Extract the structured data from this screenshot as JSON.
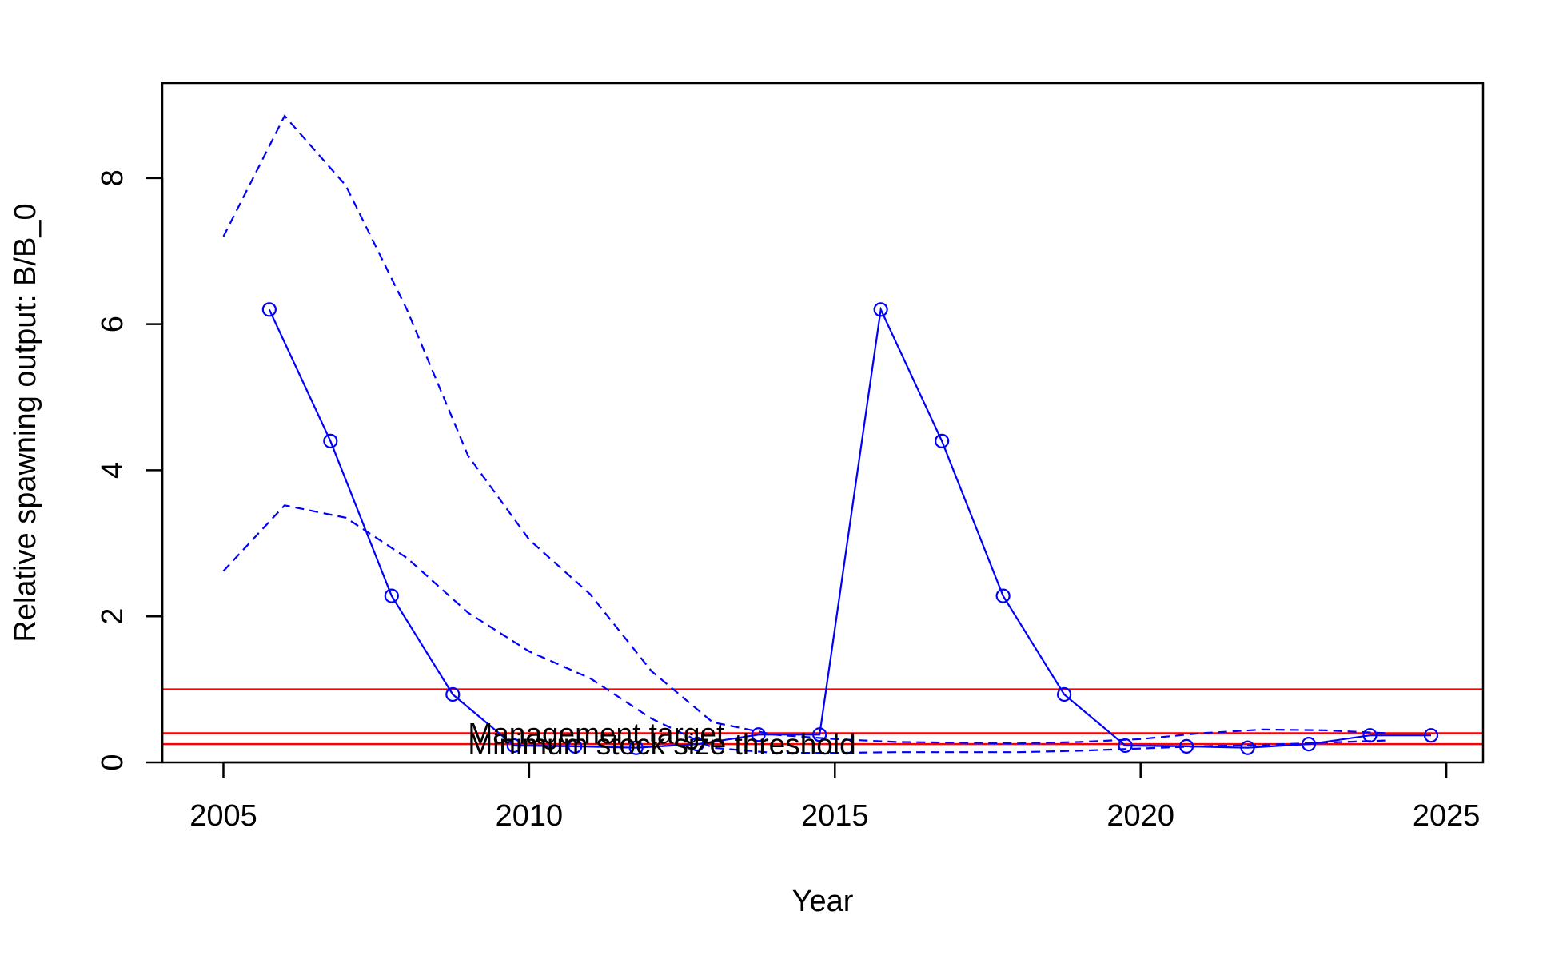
{
  "chart_data": {
    "type": "line",
    "xlabel": "Year",
    "ylabel": "Relative spawning output: B/B_0",
    "xlim": [
      2004,
      2025.6
    ],
    "ylim": [
      0,
      9.3
    ],
    "x_ticks": [
      2005,
      2010,
      2015,
      2020,
      2025
    ],
    "y_ticks": [
      0,
      2,
      4,
      6,
      8
    ],
    "grid": false,
    "colors": {
      "series": "#0000ff",
      "reference": "#ff0000",
      "axis": "#000000"
    },
    "series": [
      {
        "style": "solid-with-circle-markers",
        "x": [
          2005.75,
          2006.75,
          2007.75,
          2008.75,
          2009.75,
          2010.75,
          2011.75,
          2012.75,
          2013.75,
          2014.75,
          2015.75,
          2016.75,
          2017.75,
          2018.75,
          2019.75,
          2020.75,
          2021.75,
          2022.75,
          2023.75,
          2024.75
        ],
        "y": [
          6.2,
          4.4,
          2.28,
          0.93,
          0.23,
          0.22,
          0.2,
          0.25,
          0.38,
          0.38,
          6.2,
          4.4,
          2.28,
          0.93,
          0.23,
          0.22,
          0.2,
          0.25,
          0.37,
          0.37
        ]
      },
      {
        "style": "dashed",
        "x": [
          2005,
          2006,
          2007,
          2008,
          2009,
          2010,
          2011,
          2012,
          2013,
          2014,
          2015,
          2016,
          2017,
          2018,
          2019,
          2020,
          2021,
          2022,
          2023,
          2024
        ],
        "y": [
          7.2,
          8.85,
          7.9,
          6.2,
          4.2,
          3.05,
          2.3,
          1.25,
          0.55,
          0.38,
          0.32,
          0.28,
          0.27,
          0.26,
          0.28,
          0.32,
          0.4,
          0.45,
          0.44,
          0.4
        ]
      },
      {
        "style": "dashed",
        "x": [
          2005,
          2006,
          2007,
          2008,
          2009,
          2010,
          2011,
          2012,
          2013,
          2014,
          2015,
          2016,
          2017,
          2018,
          2019,
          2020,
          2021,
          2022,
          2023,
          2024
        ],
        "y": [
          2.62,
          3.52,
          3.35,
          2.8,
          2.05,
          1.52,
          1.15,
          0.6,
          0.2,
          0.13,
          0.13,
          0.14,
          0.14,
          0.14,
          0.16,
          0.19,
          0.22,
          0.24,
          0.27,
          0.3
        ]
      }
    ],
    "reference_lines": [
      {
        "y": 1.0,
        "label": ""
      },
      {
        "y": 0.4,
        "label": "Management target"
      },
      {
        "y": 0.25,
        "label": "Minimum stock size threshold"
      }
    ],
    "reference_label_x": 2009
  }
}
